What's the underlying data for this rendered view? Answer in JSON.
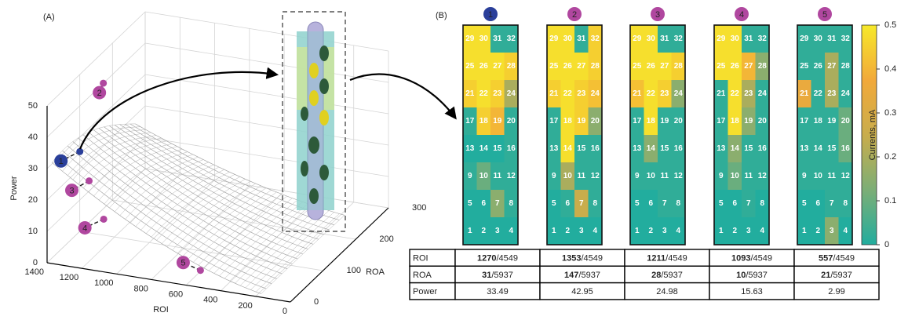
{
  "panel_labels": [
    "(A)",
    "(B)"
  ],
  "chart_data": [
    {
      "type": "scatter3d",
      "xlabel": "ROI",
      "ylabel": "ROA",
      "zlabel": "Power",
      "xlim": [
        0,
        1400
      ],
      "xticks": [
        0,
        200,
        400,
        600,
        800,
        1000,
        1200,
        1400
      ],
      "ylim": [
        0,
        300
      ],
      "yticks": [
        0,
        100,
        200,
        300
      ],
      "zlim": [
        0,
        50
      ],
      "zticks": [
        0,
        10,
        20,
        30,
        40,
        50
      ],
      "labels": [
        "1",
        "2",
        "3",
        "4",
        "5"
      ],
      "x": [
        1270,
        1353,
        1211,
        1093,
        557
      ],
      "y": [
        31,
        147,
        28,
        10,
        21
      ],
      "z": [
        33.49,
        42.95,
        24.98,
        15.63,
        2.99
      ],
      "colors": [
        "#2a3f9a",
        "#b0479f",
        "#b0479f",
        "#b0479f",
        "#b0479f"
      ]
    },
    {
      "type": "heatmap",
      "title": "1",
      "title_color": "#2a3f9a",
      "values": [
        [
          0.48,
          0.48,
          0.02,
          0.02
        ],
        [
          0.48,
          0.48,
          0.48,
          0.45
        ],
        [
          0.45,
          0.48,
          0.45,
          0.2
        ],
        [
          0.02,
          0.45,
          0.4,
          0.02
        ],
        [
          0,
          0,
          0,
          0.02
        ],
        [
          0.02,
          0.1,
          0.02,
          0.02
        ],
        [
          0,
          0,
          0.15,
          0.02
        ],
        [
          0,
          0,
          0,
          0
        ]
      ]
    },
    {
      "type": "heatmap",
      "title": "2",
      "title_color": "#b0479f",
      "values": [
        [
          0.48,
          0.48,
          0.02,
          0.45
        ],
        [
          0.48,
          0.48,
          0.48,
          0.45
        ],
        [
          0.45,
          0.48,
          0.45,
          0.42
        ],
        [
          0.02,
          0.48,
          0.45,
          0.15
        ],
        [
          0.02,
          0.48,
          0.02,
          0.02
        ],
        [
          0.02,
          0.2,
          0.02,
          0.02
        ],
        [
          0,
          0.02,
          0.25,
          0.02
        ],
        [
          0,
          0,
          0,
          0
        ]
      ]
    },
    {
      "type": "heatmap",
      "title": "3",
      "title_color": "#b0479f",
      "values": [
        [
          0.48,
          0.48,
          0.02,
          0.02
        ],
        [
          0.48,
          0.48,
          0.48,
          0.45
        ],
        [
          0.42,
          0.48,
          0.45,
          0.15
        ],
        [
          0.02,
          0.48,
          0.02,
          0.02
        ],
        [
          0.02,
          0.15,
          0.02,
          0.02
        ],
        [
          0.02,
          0.02,
          0.02,
          0.02
        ],
        [
          0,
          0,
          0.02,
          0.02
        ],
        [
          0,
          0,
          0,
          0
        ]
      ]
    },
    {
      "type": "heatmap",
      "title": "4",
      "title_color": "#b0479f",
      "values": [
        [
          0.48,
          0.48,
          0.02,
          0.02
        ],
        [
          0.48,
          0.48,
          0.4,
          0.15
        ],
        [
          0.02,
          0.48,
          0.2,
          0.02
        ],
        [
          0.02,
          0.48,
          0.15,
          0.02
        ],
        [
          0.02,
          0.15,
          0.02,
          0.02
        ],
        [
          0.02,
          0.1,
          0.02,
          0.02
        ],
        [
          0,
          0,
          0.02,
          0
        ],
        [
          0,
          0,
          0,
          0
        ]
      ]
    },
    {
      "type": "heatmap",
      "title": "5",
      "title_color": "#b0479f",
      "values": [
        [
          0.02,
          0.02,
          0.02,
          0.02
        ],
        [
          0.02,
          0.02,
          0.2,
          0.02
        ],
        [
          0.35,
          0.02,
          0.2,
          0.02
        ],
        [
          0.02,
          0.02,
          0.02,
          0.1
        ],
        [
          0.02,
          0.02,
          0.02,
          0.1
        ],
        [
          0.02,
          0.02,
          0.02,
          0.02
        ],
        [
          0,
          0,
          0.02,
          0.02
        ],
        [
          0,
          0,
          0.15,
          0
        ]
      ]
    }
  ],
  "electrode_labels": [
    [
      29,
      30,
      31,
      32
    ],
    [
      25,
      26,
      27,
      28
    ],
    [
      21,
      22,
      23,
      24
    ],
    [
      17,
      18,
      19,
      20
    ],
    [
      13,
      14,
      15,
      16
    ],
    [
      9,
      10,
      11,
      12
    ],
    [
      5,
      6,
      7,
      8
    ],
    [
      1,
      2,
      3,
      4
    ]
  ],
  "colorbar": {
    "label": "Currents, mA",
    "lim": [
      0,
      0.5
    ],
    "ticks": [
      0,
      0.1,
      0.2,
      0.3,
      0.4,
      0.5
    ],
    "colors": [
      "#22ad9e",
      "#7cae76",
      "#c9ad4c",
      "#f2a93a",
      "#f7e92a"
    ]
  },
  "table": {
    "rows": [
      [
        "ROI",
        {
          "bold": "1270",
          "rest": "/4549"
        },
        {
          "bold": "1353",
          "rest": "/4549"
        },
        {
          "bold": "1211",
          "rest": "/4549"
        },
        {
          "bold": "1093",
          "rest": "/4549"
        },
        {
          "bold": "557",
          "rest": "/4549"
        }
      ],
      [
        "ROA",
        {
          "bold": "31",
          "rest": "/5937"
        },
        {
          "bold": "147",
          "rest": "/5937"
        },
        {
          "bold": "28",
          "rest": "/5937"
        },
        {
          "bold": "10",
          "rest": "/5937"
        },
        {
          "bold": "21",
          "rest": "/5937"
        }
      ],
      [
        "Power",
        "33.49",
        "42.95",
        "24.98",
        "15.63",
        "2.99"
      ]
    ]
  }
}
